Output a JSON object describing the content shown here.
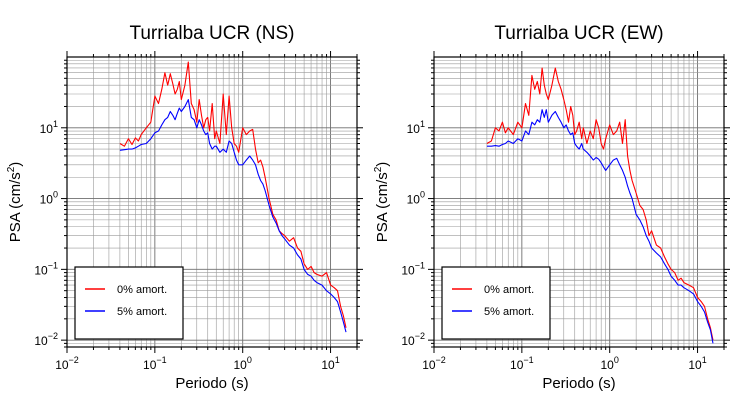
{
  "chart_data": [
    {
      "type": "line",
      "title": "Turrialba UCR (NS)",
      "xlabel": "Periodo (s)",
      "ylabel_main": "PSA (cm/s",
      "ylabel_sup": "2",
      "ylabel_end": ")",
      "x_scale": "log",
      "y_scale": "log",
      "xlim": [
        0.01,
        20
      ],
      "ylim": [
        0.008,
        100
      ],
      "grid": true,
      "legend_position": "bottom-left",
      "x_ticks": [
        {
          "base": "10",
          "exp": "−2"
        },
        {
          "base": "10",
          "exp": "−1"
        },
        {
          "base": "10",
          "exp": "0"
        },
        {
          "base": "10",
          "exp": "1"
        }
      ],
      "y_ticks": [
        {
          "base": "10",
          "exp": "−2"
        },
        {
          "base": "10",
          "exp": "−1"
        },
        {
          "base": "10",
          "exp": "0"
        },
        {
          "base": "10",
          "exp": "1"
        }
      ],
      "series": [
        {
          "name": "0% amort.",
          "color": "#ff0000",
          "x": [
            0.04,
            0.045,
            0.05,
            0.055,
            0.06,
            0.065,
            0.07,
            0.08,
            0.09,
            0.1,
            0.11,
            0.12,
            0.13,
            0.14,
            0.15,
            0.16,
            0.17,
            0.18,
            0.19,
            0.2,
            0.22,
            0.24,
            0.26,
            0.28,
            0.3,
            0.32,
            0.34,
            0.36,
            0.38,
            0.4,
            0.42,
            0.45,
            0.48,
            0.5,
            0.55,
            0.6,
            0.65,
            0.7,
            0.75,
            0.8,
            0.85,
            0.9,
            1.0,
            1.1,
            1.2,
            1.3,
            1.4,
            1.5,
            1.6,
            1.7,
            1.8,
            2.0,
            2.2,
            2.4,
            2.6,
            2.8,
            3.0,
            3.4,
            3.8,
            4.2,
            4.6,
            5.0,
            5.5,
            6.0,
            6.5,
            7.0,
            8.0,
            9.0,
            10.0,
            11.0,
            12.0,
            13.0,
            14.0,
            15.0
          ],
          "y": [
            6.0,
            5.5,
            7.0,
            5.8,
            7.2,
            6.5,
            8.0,
            10.0,
            12.0,
            28.0,
            22.0,
            35.0,
            60.0,
            40.0,
            58.0,
            42.0,
            30.0,
            35.0,
            45.0,
            25.0,
            40.0,
            85.0,
            22.0,
            18.0,
            12.0,
            25.0,
            15.0,
            10.0,
            13.0,
            14.0,
            9.0,
            22.0,
            7.0,
            9.0,
            6.0,
            30.0,
            8.0,
            28.0,
            10.0,
            6.0,
            5.5,
            4.5,
            10.0,
            8.0,
            9.0,
            9.5,
            5.0,
            3.2,
            3.5,
            2.8,
            2.0,
            1.0,
            0.6,
            0.5,
            0.35,
            0.32,
            0.3,
            0.25,
            0.28,
            0.2,
            0.18,
            0.12,
            0.1,
            0.11,
            0.09,
            0.085,
            0.08,
            0.09,
            0.06,
            0.055,
            0.05,
            0.03,
            0.022,
            0.015
          ]
        },
        {
          "name": "5% amort.",
          "color": "#0000ff",
          "x": [
            0.04,
            0.045,
            0.05,
            0.055,
            0.06,
            0.065,
            0.07,
            0.08,
            0.09,
            0.1,
            0.11,
            0.12,
            0.13,
            0.14,
            0.15,
            0.16,
            0.17,
            0.18,
            0.19,
            0.2,
            0.22,
            0.24,
            0.26,
            0.28,
            0.3,
            0.32,
            0.34,
            0.36,
            0.38,
            0.4,
            0.42,
            0.45,
            0.48,
            0.5,
            0.55,
            0.6,
            0.65,
            0.7,
            0.75,
            0.8,
            0.85,
            0.9,
            1.0,
            1.1,
            1.2,
            1.3,
            1.4,
            1.5,
            1.6,
            1.7,
            1.8,
            2.0,
            2.2,
            2.4,
            2.6,
            2.8,
            3.0,
            3.4,
            3.8,
            4.2,
            4.6,
            5.0,
            5.5,
            6.0,
            6.5,
            7.0,
            8.0,
            9.0,
            10.0,
            11.0,
            12.0,
            13.0,
            14.0,
            15.0
          ],
          "y": [
            4.8,
            4.9,
            5.0,
            5.0,
            5.2,
            5.5,
            5.8,
            6.0,
            7.0,
            8.5,
            9.0,
            11.0,
            13.0,
            14.0,
            17.0,
            15.0,
            13.0,
            16.0,
            19.0,
            17.0,
            20.0,
            25.0,
            14.0,
            13.0,
            10.0,
            13.0,
            11.0,
            9.0,
            8.0,
            8.5,
            6.0,
            5.0,
            5.5,
            5.5,
            4.5,
            5.0,
            4.5,
            6.5,
            6.0,
            4.5,
            3.5,
            3.0,
            3.0,
            3.5,
            4.0,
            3.5,
            3.0,
            2.2,
            1.8,
            1.6,
            1.3,
            0.8,
            0.55,
            0.45,
            0.35,
            0.3,
            0.27,
            0.22,
            0.2,
            0.16,
            0.14,
            0.1,
            0.085,
            0.08,
            0.07,
            0.065,
            0.06,
            0.05,
            0.045,
            0.04,
            0.035,
            0.025,
            0.018,
            0.013
          ]
        }
      ]
    },
    {
      "type": "line",
      "title": "Turrialba UCR (EW)",
      "xlabel": "Periodo (s)",
      "ylabel_main": "PSA (cm/s",
      "ylabel_sup": "2",
      "ylabel_end": ")",
      "x_scale": "log",
      "y_scale": "log",
      "xlim": [
        0.01,
        20
      ],
      "ylim": [
        0.008,
        100
      ],
      "grid": true,
      "legend_position": "bottom-left",
      "x_ticks": [
        {
          "base": "10",
          "exp": "−2"
        },
        {
          "base": "10",
          "exp": "−1"
        },
        {
          "base": "10",
          "exp": "0"
        },
        {
          "base": "10",
          "exp": "1"
        }
      ],
      "y_ticks": [
        {
          "base": "10",
          "exp": "−2"
        },
        {
          "base": "10",
          "exp": "−1"
        },
        {
          "base": "10",
          "exp": "0"
        },
        {
          "base": "10",
          "exp": "1"
        }
      ],
      "series": [
        {
          "name": "0% amort.",
          "color": "#ff0000",
          "x": [
            0.04,
            0.045,
            0.05,
            0.055,
            0.06,
            0.065,
            0.07,
            0.08,
            0.09,
            0.1,
            0.11,
            0.12,
            0.13,
            0.14,
            0.15,
            0.16,
            0.17,
            0.18,
            0.19,
            0.2,
            0.22,
            0.24,
            0.26,
            0.28,
            0.3,
            0.32,
            0.34,
            0.36,
            0.38,
            0.4,
            0.42,
            0.45,
            0.48,
            0.5,
            0.55,
            0.6,
            0.65,
            0.7,
            0.75,
            0.8,
            0.85,
            0.9,
            1.0,
            1.1,
            1.2,
            1.3,
            1.4,
            1.5,
            1.6,
            1.7,
            1.8,
            2.0,
            2.2,
            2.4,
            2.6,
            2.8,
            3.0,
            3.4,
            3.8,
            4.2,
            4.6,
            5.0,
            5.5,
            6.0,
            6.5,
            7.0,
            8.0,
            9.0,
            10.0,
            11.0,
            12.0,
            13.0,
            14.0,
            15.0
          ],
          "y": [
            6.0,
            6.5,
            10.0,
            9.0,
            12.0,
            8.5,
            10.0,
            8.0,
            12.0,
            10.0,
            22.0,
            15.0,
            55.0,
            35.0,
            45.0,
            30.0,
            70.0,
            40.0,
            30.0,
            25.0,
            40.0,
            70.0,
            45.0,
            35.0,
            25.0,
            18.0,
            12.0,
            20.0,
            15.0,
            8.0,
            9.0,
            12.0,
            7.0,
            10.0,
            6.0,
            9.0,
            7.0,
            13.0,
            10.0,
            6.0,
            5.0,
            7.0,
            11.0,
            8.0,
            9.0,
            12.0,
            6.0,
            13.0,
            4.0,
            2.5,
            1.8,
            1.2,
            0.8,
            0.7,
            0.5,
            0.3,
            0.35,
            0.22,
            0.2,
            0.15,
            0.12,
            0.1,
            0.09,
            0.07,
            0.075,
            0.065,
            0.06,
            0.055,
            0.04,
            0.035,
            0.03,
            0.02,
            0.015,
            0.01
          ]
        },
        {
          "name": "5% amort.",
          "color": "#0000ff",
          "x": [
            0.04,
            0.045,
            0.05,
            0.055,
            0.06,
            0.065,
            0.07,
            0.08,
            0.09,
            0.1,
            0.11,
            0.12,
            0.13,
            0.14,
            0.15,
            0.16,
            0.17,
            0.18,
            0.19,
            0.2,
            0.22,
            0.24,
            0.26,
            0.28,
            0.3,
            0.32,
            0.34,
            0.36,
            0.38,
            0.4,
            0.42,
            0.45,
            0.48,
            0.5,
            0.55,
            0.6,
            0.65,
            0.7,
            0.75,
            0.8,
            0.85,
            0.9,
            1.0,
            1.1,
            1.2,
            1.3,
            1.4,
            1.5,
            1.6,
            1.7,
            1.8,
            2.0,
            2.2,
            2.4,
            2.6,
            2.8,
            3.0,
            3.4,
            3.8,
            4.2,
            4.6,
            5.0,
            5.5,
            6.0,
            6.5,
            7.0,
            8.0,
            9.0,
            10.0,
            11.0,
            12.0,
            13.0,
            14.0,
            15.0
          ],
          "y": [
            5.5,
            5.5,
            5.6,
            5.5,
            5.8,
            6.0,
            6.5,
            6.0,
            7.0,
            6.5,
            9.0,
            8.0,
            12.0,
            11.0,
            13.0,
            12.0,
            18.0,
            14.0,
            18.0,
            12.0,
            15.0,
            17.0,
            14.0,
            12.0,
            10.0,
            11.0,
            9.0,
            8.0,
            8.5,
            6.0,
            5.5,
            5.0,
            6.0,
            5.0,
            4.5,
            4.0,
            3.5,
            3.8,
            3.6,
            3.2,
            2.8,
            2.5,
            3.0,
            3.5,
            3.7,
            3.0,
            2.5,
            2.0,
            1.5,
            1.2,
            1.0,
            0.6,
            0.5,
            0.4,
            0.3,
            0.25,
            0.2,
            0.17,
            0.15,
            0.12,
            0.1,
            0.08,
            0.07,
            0.06,
            0.06,
            0.055,
            0.05,
            0.045,
            0.035,
            0.03,
            0.025,
            0.018,
            0.014,
            0.009
          ]
        }
      ]
    }
  ]
}
